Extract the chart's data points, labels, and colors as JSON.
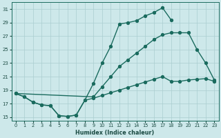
{
  "bg_color": "#cde8ea",
  "grid_color": "#aacdd0",
  "line_color": "#1a6b5e",
  "xlim": [
    -0.5,
    23.5
  ],
  "ylim": [
    14.5,
    32
  ],
  "xticks": [
    0,
    1,
    2,
    3,
    4,
    5,
    6,
    7,
    8,
    9,
    10,
    11,
    12,
    13,
    14,
    15,
    16,
    17,
    18,
    19,
    20,
    21,
    22,
    23
  ],
  "yticks": [
    15,
    17,
    19,
    21,
    23,
    25,
    27,
    29,
    31
  ],
  "xlabel": "Humidex (Indice chaleur)",
  "line_top_x": [
    0,
    1,
    2,
    3,
    4,
    5,
    6,
    7,
    8,
    9,
    10,
    11,
    12,
    13,
    14,
    15,
    16,
    17,
    18,
    19,
    20,
    21,
    22
  ],
  "line_top_y": [
    18.5,
    18.0,
    17.2,
    16.8,
    16.7,
    15.2,
    15.1,
    15.3,
    17.5,
    20.0,
    23.0,
    25.5,
    28.8,
    29.0,
    29.3,
    30.0,
    30.5,
    31.2,
    29.4,
    null,
    null,
    null,
    null
  ],
  "line_mid_x": [
    0,
    9,
    10,
    11,
    12,
    13,
    14,
    15,
    16,
    17,
    18,
    19,
    20,
    21,
    22,
    23
  ],
  "line_mid_y": [
    18.5,
    18.0,
    19.5,
    21.0,
    22.5,
    23.5,
    24.5,
    25.5,
    26.5,
    27.2,
    27.5,
    27.5,
    27.5,
    25.0,
    23.0,
    20.5
  ],
  "line_bot_x": [
    0,
    1,
    2,
    3,
    4,
    5,
    6,
    7,
    8,
    9,
    10,
    11,
    12,
    13,
    14,
    15,
    16,
    17,
    18,
    19,
    20,
    21,
    22,
    23
  ],
  "line_bot_y": [
    18.5,
    18.0,
    17.2,
    16.8,
    16.7,
    15.2,
    15.1,
    15.3,
    17.5,
    17.8,
    18.2,
    18.6,
    19.0,
    19.4,
    19.8,
    20.2,
    20.6,
    21.0,
    20.3,
    20.3,
    20.5,
    20.6,
    20.7,
    20.3
  ]
}
